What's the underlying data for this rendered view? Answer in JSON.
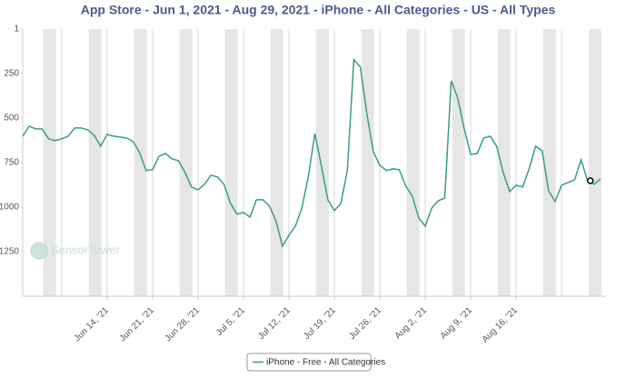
{
  "chart_data": {
    "type": "line",
    "title": "App Store - Jun 1, 2021 - Aug 29, 2021 - iPhone - All Categories - US - All Types",
    "watermark": "SensorTower",
    "categories": [
      null,
      null,
      null,
      null,
      null,
      null,
      null,
      null,
      null,
      null,
      null,
      null,
      null,
      "Jun 14, '21",
      null,
      null,
      null,
      null,
      null,
      null,
      "Jun 21, '21",
      null,
      null,
      null,
      null,
      null,
      null,
      "Jun 28, '21",
      null,
      null,
      null,
      null,
      null,
      null,
      "Jul 5, '21",
      null,
      null,
      null,
      null,
      null,
      null,
      "Jul 12, '21",
      null,
      null,
      null,
      null,
      null,
      null,
      "Jul 19, '21",
      null,
      null,
      null,
      null,
      null,
      null,
      "Jul 26, '21",
      null,
      null,
      null,
      null,
      null,
      null,
      "Aug 2, '21",
      null,
      null,
      null,
      null,
      null,
      null,
      "Aug 9, '21",
      null,
      null,
      null,
      null,
      null,
      null,
      "Aug 16, '21",
      null,
      null,
      null,
      null,
      null,
      null,
      null,
      null,
      null,
      null,
      null,
      null,
      null
    ],
    "series": [
      {
        "name": "iPhone - Free - All Categories",
        "color": "#3a9c86",
        "values": [
          602,
          546,
          561,
          561,
          617,
          627,
          617,
          602,
          556,
          556,
          566,
          597,
          658,
          592,
          602,
          607,
          612,
          632,
          694,
          795,
          790,
          714,
          699,
          729,
          740,
          806,
          887,
          903,
          872,
          821,
          831,
          872,
          979,
          1040,
          1030,
          1056,
          959,
          959,
          994,
          1076,
          1219,
          1158,
          1107,
          1005,
          826,
          587,
          770,
          959,
          1020,
          979,
          795,
          173,
          214,
          474,
          689,
          765,
          795,
          785,
          790,
          882,
          938,
          1061,
          1107,
          1005,
          964,
          949,
          291,
          388,
          561,
          704,
          699,
          612,
          602,
          658,
          806,
          913,
          877,
          887,
          785,
          658,
          684,
          908,
          969,
          877,
          862,
          847,
          735,
          852,
          872,
          842
        ]
      }
    ],
    "highlighted_point": 87,
    "ylim": [
      1500,
      1
    ],
    "yticks": [
      1,
      250,
      500,
      750,
      1000,
      1250
    ]
  }
}
